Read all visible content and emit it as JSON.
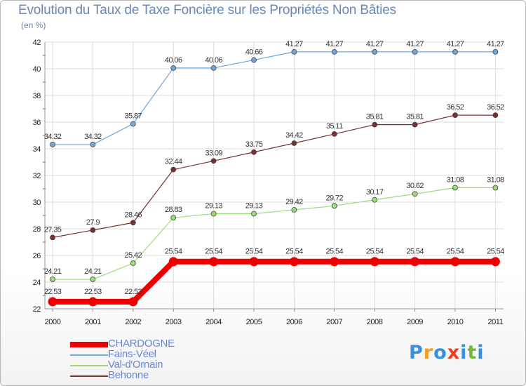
{
  "chart_data": {
    "type": "line",
    "title": "Evolution du Taux de Taxe Foncière sur les Propriétés Non Bâties",
    "ylabel": "(en %)",
    "xlabel": "",
    "ylim": [
      22,
      42
    ],
    "yticks": [
      "22",
      "24",
      "26",
      "28",
      "30",
      "32",
      "34",
      "36",
      "38",
      "40",
      "42"
    ],
    "categories": [
      "2000",
      "2001",
      "2002",
      "2003",
      "2004",
      "2005",
      "2006",
      "2007",
      "2008",
      "2009",
      "2010",
      "2011"
    ],
    "series": [
      {
        "name": "CHARDOGNE",
        "color": "#ee0000",
        "values": [
          22.53,
          22.53,
          22.53,
          25.54,
          25.54,
          25.54,
          25.54,
          25.54,
          25.54,
          25.54,
          25.54,
          25.54
        ],
        "labels": [
          "22.53",
          "22.53",
          "22.53",
          "25.54",
          "25.54",
          "25.54",
          "25.54",
          "25.54",
          "25.54",
          "25.54",
          "25.54",
          "25.54"
        ]
      },
      {
        "name": "Fains-Véel",
        "color": "#6fa8dc",
        "values": [
          34.32,
          34.32,
          35.87,
          40.06,
          40.06,
          40.66,
          41.27,
          41.27,
          41.27,
          41.27,
          41.27,
          41.27
        ],
        "labels": [
          "34.32",
          "34.32",
          "35.87",
          "40.06",
          "40.06",
          "40.66",
          "41.27",
          "41.27",
          "41.27",
          "41.27",
          "41.27",
          "41.27"
        ]
      },
      {
        "name": "Val-d'Ornain",
        "color": "#99dd77",
        "values": [
          24.21,
          24.21,
          25.42,
          28.83,
          29.13,
          29.13,
          29.42,
          29.72,
          30.17,
          30.62,
          31.08,
          31.08
        ],
        "labels": [
          "24.21",
          "24.21",
          "25.42",
          "28.83",
          "29.13",
          "29.13",
          "29.42",
          "29.72",
          "30.17",
          "30.62",
          "31.08",
          "31.08"
        ]
      },
      {
        "name": "Behonne",
        "color": "#7a3030",
        "values": [
          27.35,
          27.9,
          28.46,
          32.44,
          33.09,
          33.75,
          34.42,
          35.11,
          35.81,
          35.81,
          36.52,
          36.52
        ],
        "labels": [
          "27.35",
          "27.9",
          "28.46",
          "32.44",
          "33.09",
          "33.75",
          "34.42",
          "35.11",
          "35.81",
          "35.81",
          "36.52",
          "36.52"
        ]
      }
    ],
    "legend_position": "bottom-left",
    "grid": true
  },
  "brand": {
    "letters": [
      "P",
      "r",
      "o",
      "x",
      "i",
      "t",
      "i"
    ],
    "colors": [
      "#3a8fd8",
      "#f0a020",
      "#3a8fd8",
      "#e84020",
      "#3a8fd8",
      "#7ab83a",
      "#3a8fd8"
    ]
  }
}
